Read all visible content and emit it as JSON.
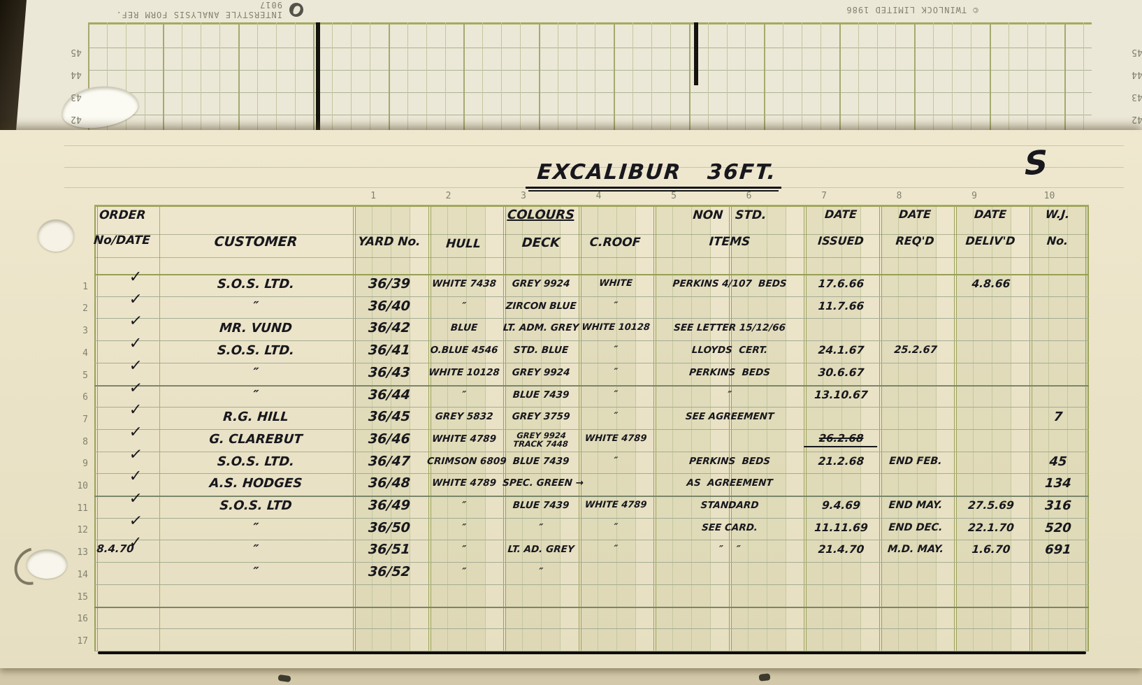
{
  "back_sheet": {
    "brand_left": "INTERSTYLE ANALYSIS FORM REF. 9017",
    "brand_right": "© TWINLOCK LIMITED 1986",
    "row_numbers": [
      "45",
      "44",
      "43",
      "42"
    ]
  },
  "sheet": {
    "title": "EXCALIBUR   36FT.",
    "corner_mark": "S",
    "column_numbers": [
      "1",
      "2",
      "3",
      "4",
      "5",
      "6",
      "7",
      "8",
      "9",
      "10"
    ],
    "row_numbers": [
      "1",
      "2",
      "3",
      "4",
      "5",
      "6",
      "7",
      "8",
      "9",
      "10",
      "11",
      "12",
      "13",
      "14",
      "15",
      "16",
      "17"
    ],
    "headers": {
      "order_line1": "ORDER",
      "order_line2": "No/DATE",
      "customer": "CUSTOMER",
      "yard_no": "YARD No.",
      "colours_group": "COLOURS",
      "hull": "HULL",
      "deck": "DECK",
      "c_roof": "C.ROOF",
      "non_std_line1": "NON   STD.",
      "non_std_line2": "ITEMS",
      "date_issued_line1": "DATE",
      "date_issued_line2": "ISSUED",
      "date_reqd_line1": "DATE",
      "date_reqd_line2": "REQ'D",
      "date_delivd_line1": "DATE",
      "date_delivd_line2": "DELIV'D",
      "wj_line1": "W.J.",
      "wj_line2": "No."
    },
    "rows": [
      {
        "check": "✓",
        "customer": "S.O.S. LTD.",
        "yard": "36/39",
        "hull": "WHITE 7438",
        "deck": "GREY 9924",
        "roof": "WHITE",
        "items": "PERKINS 4/107  BEDS",
        "issued": "17.6.66",
        "delivd": "4.8.66"
      },
      {
        "check": "✓",
        "customer": "″",
        "yard": "36/40",
        "hull": "″",
        "deck": "ZIRCON BLUE",
        "roof": "″",
        "issued": "11.7.66"
      },
      {
        "check": "✓",
        "customer": "MR. VUND",
        "yard": "36/42",
        "hull": "BLUE",
        "deck": "LT. ADM. GREY",
        "roof": "WHITE 10128",
        "items": "SEE LETTER 15/12/66"
      },
      {
        "check": "✓",
        "customer": "S.O.S. LTD.",
        "yard": "36/41",
        "hull": "O.BLUE 4546",
        "deck": "STD. BLUE",
        "roof": "″",
        "items": "LLOYDS  CERT.",
        "issued": "24.1.67",
        "reqd": "25.2.67"
      },
      {
        "check": "✓",
        "customer": "″",
        "yard": "36/43",
        "hull": "WHITE 10128",
        "deck": "GREY 9924",
        "roof": "″",
        "items": "PERKINS  BEDS",
        "issued": "30.6.67"
      },
      {
        "check": "✓",
        "customer": "″",
        "yard": "36/44",
        "hull": "″",
        "deck": "BLUE 7439",
        "roof": "″",
        "items": "″",
        "issued": "13.10.67"
      },
      {
        "check": "✓",
        "customer": "R.G. HILL",
        "yard": "36/45",
        "hull": "GREY 5832",
        "deck": "GREY 3759",
        "roof": "″",
        "items": "SEE AGREEMENT",
        "wj": "7"
      },
      {
        "check": "✓",
        "customer": "G. CLAREBUT",
        "yard": "36/46",
        "hull": "WHITE 4789",
        "deck": "GREY 9924\nTRACK 7448",
        "roof": "WHITE 4789",
        "issued_struck": "26.2.68"
      },
      {
        "check": "✓",
        "customer": "S.O.S. LTD.",
        "yard": "36/47",
        "hull": "CRIMSON 6809",
        "deck": "BLUE 7439",
        "roof": "″",
        "items": "PERKINS  BEDS",
        "issued": "21.2.68",
        "reqd": "END FEB.",
        "wj": "45"
      },
      {
        "check": "✓",
        "customer": "A.S. HODGES",
        "yard": "36/48",
        "hull": "WHITE 4789",
        "deck": "SPEC. GREEN →",
        "items": "AS  AGREEMENT",
        "wj": "134"
      },
      {
        "check": "✓",
        "customer": "S.O.S. LTD",
        "yard": "36/49",
        "hull": "″",
        "deck": "BLUE 7439",
        "roof": "WHITE 4789",
        "items": "STANDARD",
        "issued": "9.4.69",
        "reqd": "END MAY.",
        "delivd": "27.5.69",
        "wj": "316"
      },
      {
        "check": "✓",
        "customer": "″",
        "yard": "36/50",
        "hull": "″",
        "deck": "″",
        "roof": "″",
        "items": "SEE CARD.",
        "issued": "11.11.69",
        "reqd": "END DEC.",
        "delivd": "22.1.70",
        "wj": "520"
      },
      {
        "order": "8.4.70",
        "check": "✓",
        "customer": "″",
        "yard": "36/51",
        "hull": "″",
        "deck": "LT. AD. GREY",
        "roof": "″",
        "items": "″    ″",
        "issued": "21.4.70",
        "reqd": "M.D. MAY.",
        "delivd": "1.6.70",
        "wj": "691"
      },
      {
        "customer": "″",
        "yard": "36/52",
        "hull": "″",
        "deck": "″"
      },
      {},
      {},
      {}
    ]
  },
  "colors": {
    "paper": "#ece4c9",
    "back_paper": "#ece8d7",
    "grid_olive": "#a2a85c",
    "grid_light": "#c4c89f",
    "ink": "#17171d",
    "print_grey": "#81816e"
  }
}
